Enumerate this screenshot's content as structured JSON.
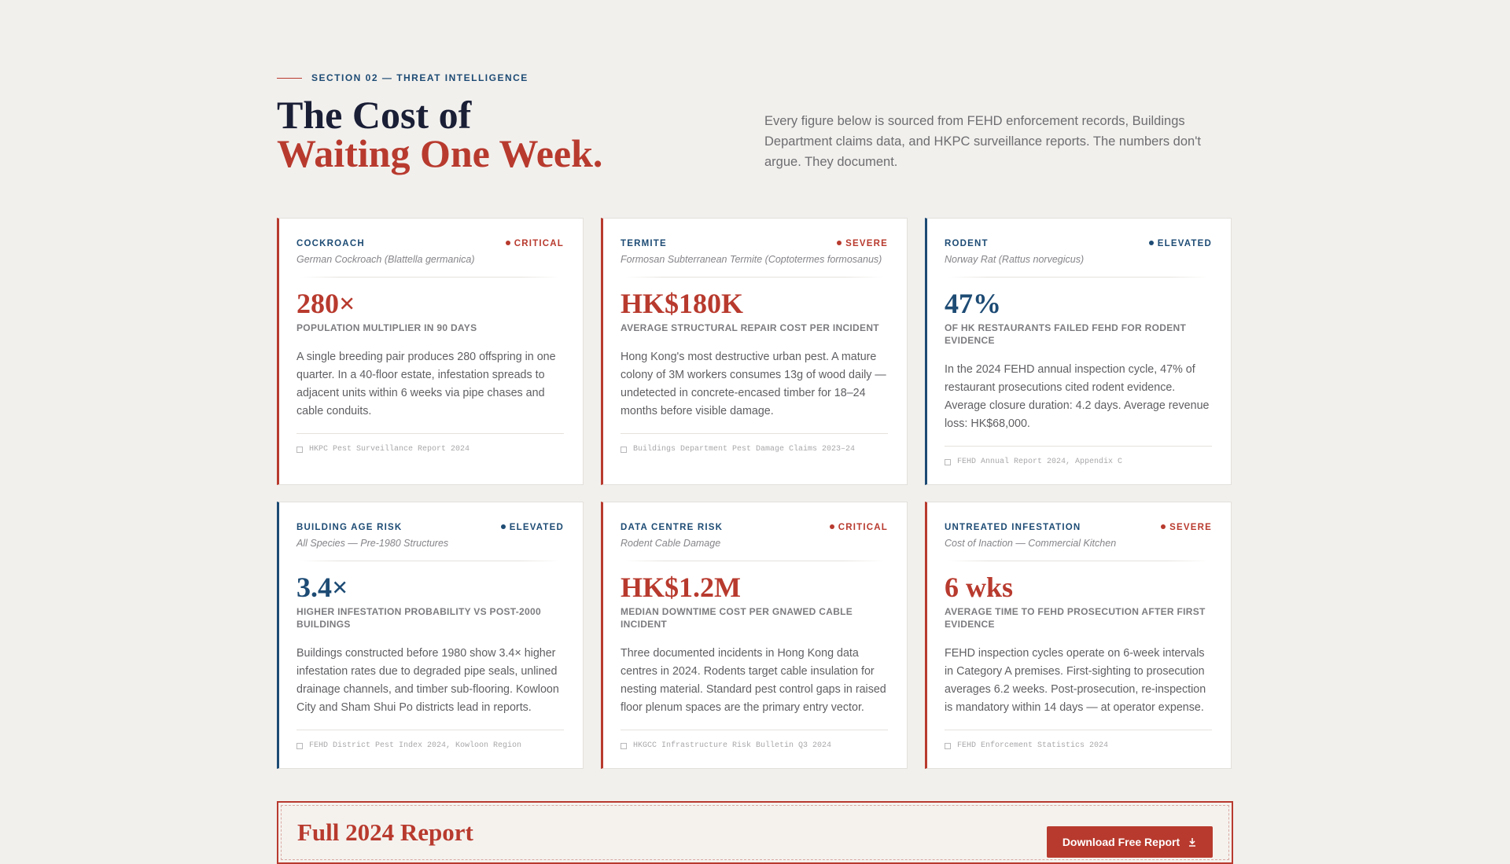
{
  "header": {
    "eyebrow": "SECTION 02 — THREAT INTELLIGENCE",
    "title_line1": "The Cost of",
    "title_line2": "Waiting One Week.",
    "intro": "Every figure below is sourced from FEHD enforcement records, Buildings Department claims data, and HKPC surveillance reports. The numbers don't argue. They document."
  },
  "cards": [
    {
      "category": "COCKROACH",
      "level": "CRITICAL",
      "accent": "#b83a2e",
      "subtitle": "German Cockroach (Blattella germanica)",
      "figure": "280×",
      "figure_label": "POPULATION MULTIPLIER IN 90 DAYS",
      "body": "A single breeding pair produces 280 offspring in one quarter. In a 40-floor estate, infestation spreads to adjacent units within 6 weeks via pipe chases and cable conduits.",
      "source": "HKPC Pest Surveillance Report 2024"
    },
    {
      "category": "TERMITE",
      "level": "SEVERE",
      "accent": "#b83a2e",
      "subtitle": "Formosan Subterranean Termite (Coptotermes formosanus)",
      "figure": "HK$180K",
      "figure_label": "AVERAGE STRUCTURAL REPAIR COST PER INCIDENT",
      "body": "Hong Kong's most destructive urban pest. A mature colony of 3M workers consumes 13g of wood daily — undetected in concrete-encased timber for 18–24 months before visible damage.",
      "source": "Buildings Department Pest Damage Claims 2023–24"
    },
    {
      "category": "RODENT",
      "level": "ELEVATED",
      "accent": "#1d4b74",
      "subtitle": "Norway Rat (Rattus norvegicus)",
      "figure": "47%",
      "figure_label": "OF HK RESTAURANTS FAILED FEHD FOR RODENT EVIDENCE",
      "body": "In the 2024 FEHD annual inspection cycle, 47% of restaurant prosecutions cited rodent evidence. Average closure duration: 4.2 days. Average revenue loss: HK$68,000.",
      "source": "FEHD Annual Report 2024, Appendix C"
    },
    {
      "category": "BUILDING AGE RISK",
      "level": "ELEVATED",
      "accent": "#1d4b74",
      "subtitle": "All Species — Pre-1980 Structures",
      "figure": "3.4×",
      "figure_label": "HIGHER INFESTATION PROBABILITY VS POST-2000 BUILDINGS",
      "body": "Buildings constructed before 1980 show 3.4× higher infestation rates due to degraded pipe seals, unlined drainage channels, and timber sub-flooring. Kowloon City and Sham Shui Po districts lead in reports.",
      "source": "FEHD District Pest Index 2024, Kowloon Region"
    },
    {
      "category": "DATA CENTRE RISK",
      "level": "CRITICAL",
      "accent": "#b83a2e",
      "subtitle": "Rodent Cable Damage",
      "figure": "HK$1.2M",
      "figure_label": "MEDIAN DOWNTIME COST PER GNAWED CABLE INCIDENT",
      "body": "Three documented incidents in Hong Kong data centres in 2024. Rodents target cable insulation for nesting material. Standard pest control gaps in raised floor plenum spaces are the primary entry vector.",
      "source": "HKGCC Infrastructure Risk Bulletin Q3 2024"
    },
    {
      "category": "UNTREATED INFESTATION",
      "level": "SEVERE",
      "accent": "#b83a2e",
      "subtitle": "Cost of Inaction — Commercial Kitchen",
      "figure": "6 wks",
      "figure_label": "AVERAGE TIME TO FEHD PROSECUTION AFTER FIRST EVIDENCE",
      "body": "FEHD inspection cycles operate on 6-week intervals in Category A premises. First-sighting to prosecution averages 6.2 weeks. Post-prosecution, re-inspection is mandatory within 14 days — at operator expense.",
      "source": "FEHD Enforcement Statistics 2024"
    }
  ],
  "banner": {
    "title": "Full 2024 Report",
    "button": "Download Free Report"
  }
}
